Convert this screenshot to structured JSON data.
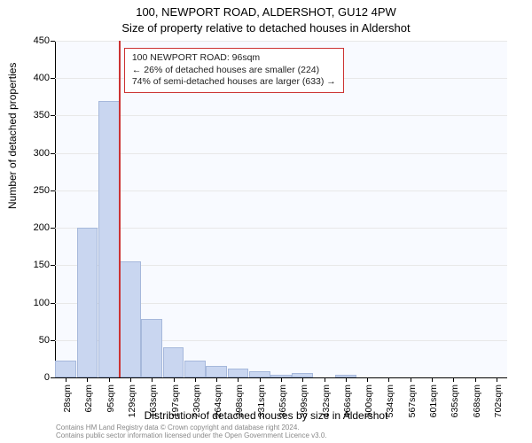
{
  "title": "100, NEWPORT ROAD, ALDERSHOT, GU12 4PW",
  "subtitle": "Size of property relative to detached houses in Aldershot",
  "chart": {
    "type": "histogram",
    "background_color": "#f8faff",
    "bar_fill": "#c9d6f0",
    "bar_border": "#a6b8db",
    "grid_color": "#e8e8e8",
    "ylabel": "Number of detached properties",
    "xlabel": "Distribution of detached houses by size in Aldershot",
    "ylim": [
      0,
      450
    ],
    "ytick_step": 50,
    "yticks": [
      0,
      50,
      100,
      150,
      200,
      250,
      300,
      350,
      400,
      450
    ],
    "xticks": [
      "28sqm",
      "62sqm",
      "95sqm",
      "129sqm",
      "163sqm",
      "197sqm",
      "230sqm",
      "264sqm",
      "298sqm",
      "331sqm",
      "365sqm",
      "399sqm",
      "432sqm",
      "466sqm",
      "500sqm",
      "534sqm",
      "567sqm",
      "601sqm",
      "635sqm",
      "668sqm",
      "702sqm"
    ],
    "values": [
      22,
      200,
      370,
      155,
      78,
      40,
      22,
      15,
      12,
      8,
      3,
      6,
      0,
      3,
      0,
      0,
      0,
      0,
      0,
      0,
      0
    ],
    "bar_width": 0.98,
    "label_fontsize": 12,
    "tick_fontsize": 11
  },
  "marker": {
    "bin_index": 2,
    "color": "#cc3333",
    "line_width": 2
  },
  "callout": {
    "border_color": "#cc3333",
    "background_color": "#ffffff",
    "line1": "100 NEWPORT ROAD: 96sqm",
    "line2": "← 26% of detached houses are smaller (224)",
    "line3": "74% of semi-detached houses are larger (633) →"
  },
  "footer": {
    "line1": "Contains HM Land Registry data © Crown copyright and database right 2024.",
    "line2": "Contains public sector information licensed under the Open Government Licence v3.0."
  }
}
